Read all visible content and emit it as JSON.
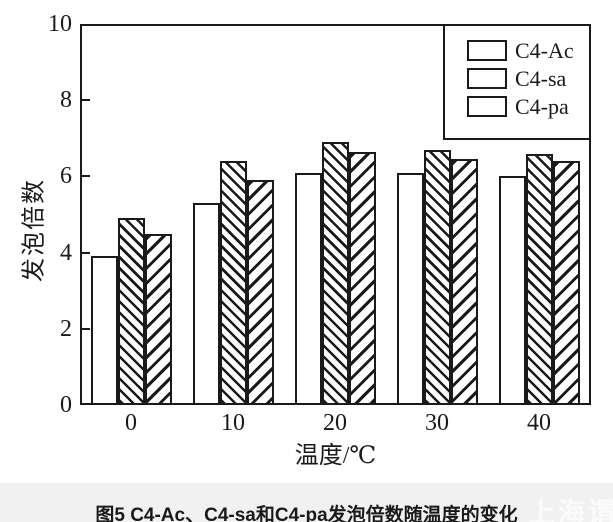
{
  "figure": {
    "caption": "图5  C4-Ac、C4-sa和C4-pa发泡倍数随温度的变化",
    "watermark": "上海谓"
  },
  "chart_data": {
    "type": "bar",
    "title": "",
    "xlabel": "温度/℃",
    "ylabel": "发泡倍数",
    "categories": [
      "0",
      "10",
      "20",
      "30",
      "40"
    ],
    "series": [
      {
        "name": "C4-Ac",
        "hatch": "none",
        "values": [
          3.9,
          5.3,
          6.1,
          6.1,
          6.0
        ]
      },
      {
        "name": "C4-sa",
        "hatch": "backslash",
        "values": [
          4.9,
          6.4,
          6.9,
          6.7,
          6.6
        ]
      },
      {
        "name": "C4-pa",
        "hatch": "slash",
        "values": [
          4.5,
          5.9,
          6.65,
          6.45,
          6.4
        ]
      }
    ],
    "ylim": [
      0,
      10
    ],
    "yticks": [
      0,
      2,
      4,
      6,
      8,
      10
    ],
    "grid": false,
    "legend_position": "top-right",
    "bar_fill_color": "#ffffff",
    "line_color": "#1a1a1a",
    "background_color": "#ffffff",
    "footer_strip_color": "#f1f1f1"
  }
}
